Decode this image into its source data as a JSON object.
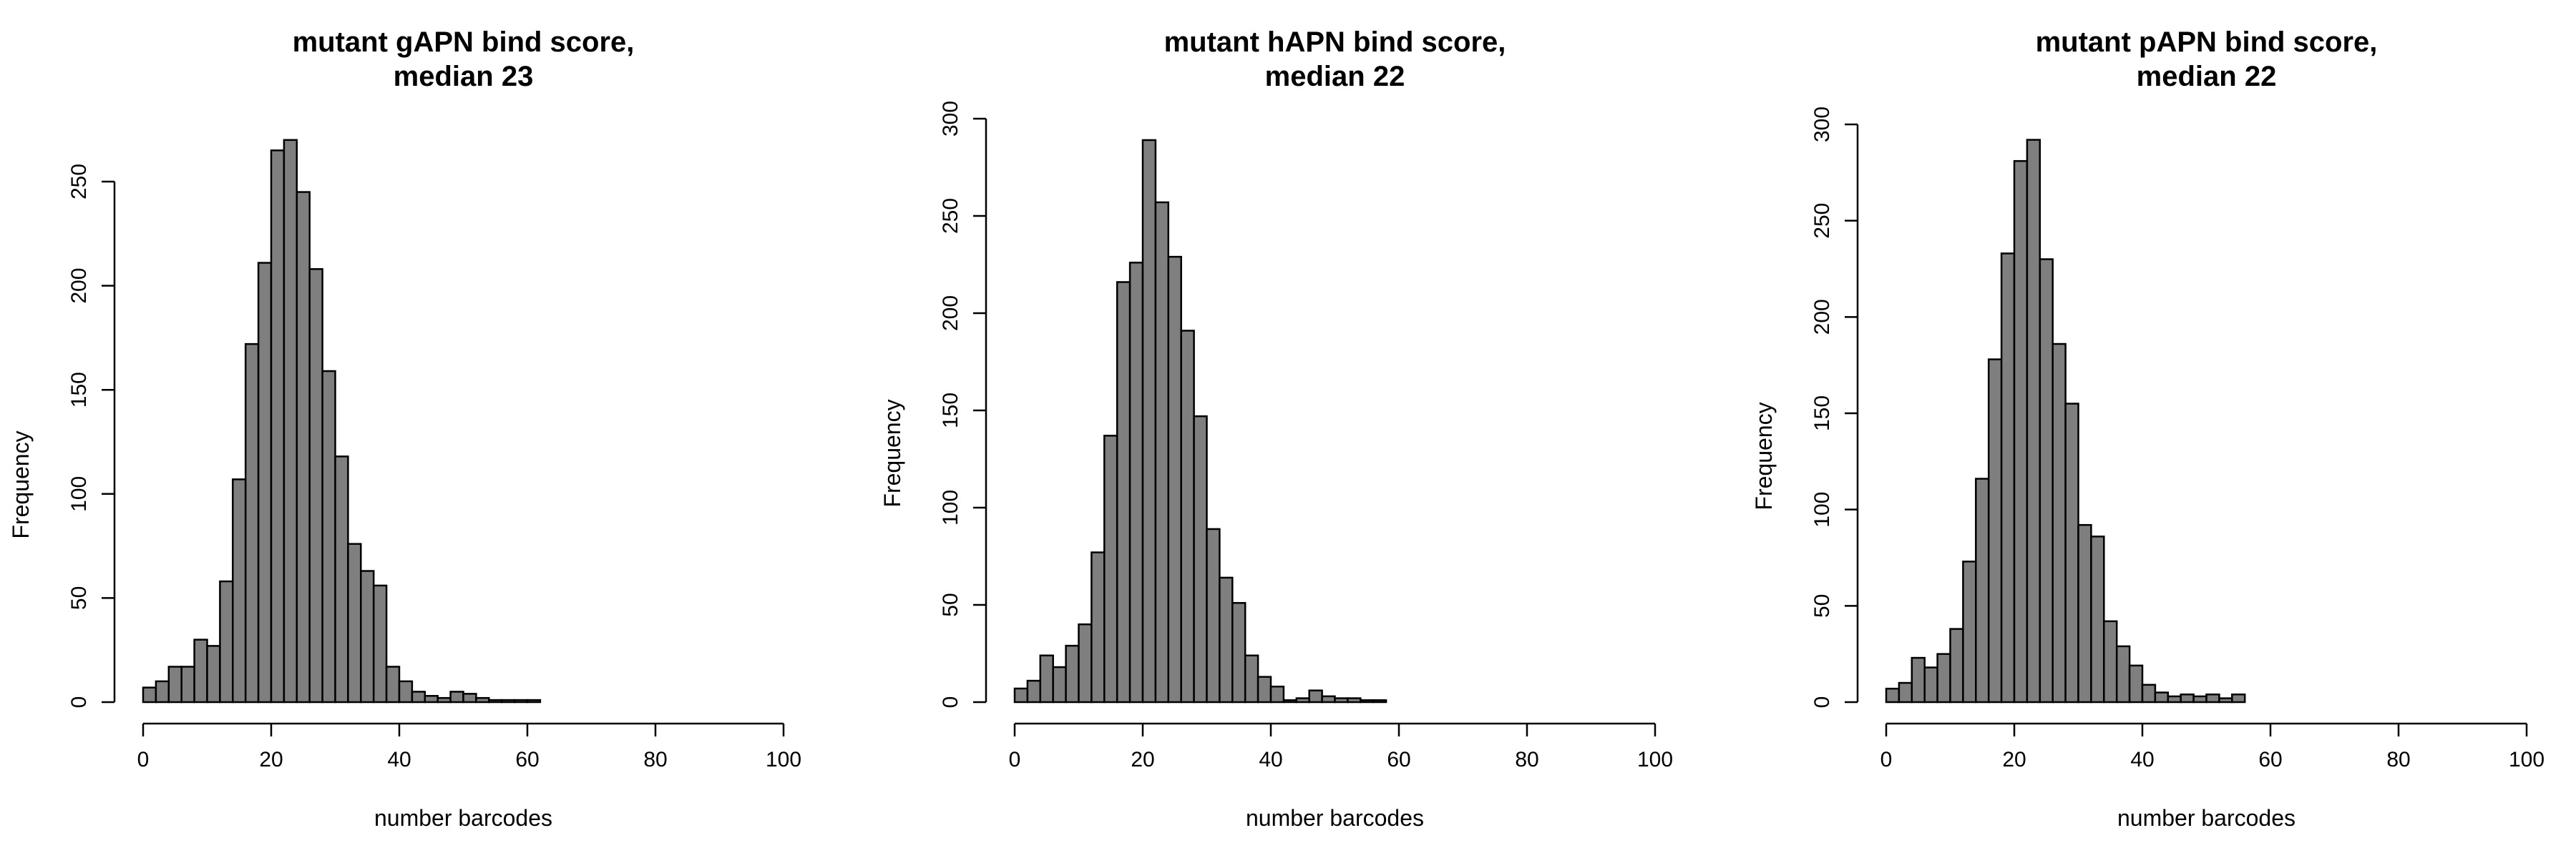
{
  "chart_data": [
    {
      "type": "bar",
      "title_line1": "mutant gAPN bind score,",
      "title_line2": "median 23",
      "xlabel": "number barcodes",
      "ylabel": "Frequency",
      "xlim": [
        0,
        100
      ],
      "ylim": [
        0,
        250
      ],
      "xticks": [
        "0",
        "20",
        "40",
        "60",
        "80",
        "100"
      ],
      "yticks": [
        "0",
        "50",
        "100",
        "150",
        "200",
        "250"
      ],
      "bin_width": 2,
      "bin_start": 0,
      "values": [
        7,
        10,
        17,
        17,
        30,
        27,
        58,
        107,
        172,
        211,
        265,
        270,
        245,
        208,
        159,
        118,
        76,
        63,
        56,
        17,
        10,
        5,
        3,
        2,
        5,
        4,
        2,
        1,
        1,
        1,
        1
      ]
    },
    {
      "type": "bar",
      "title_line1": "mutant hAPN bind score,",
      "title_line2": "median 22",
      "xlabel": "number barcodes",
      "ylabel": "Frequency",
      "xlim": [
        0,
        100
      ],
      "ylim": [
        0,
        300
      ],
      "xticks": [
        "0",
        "20",
        "40",
        "60",
        "80",
        "100"
      ],
      "yticks": [
        "0",
        "50",
        "100",
        "150",
        "200",
        "250",
        "300"
      ],
      "bin_width": 2,
      "bin_start": 0,
      "values": [
        7,
        11,
        24,
        18,
        29,
        40,
        77,
        137,
        216,
        226,
        289,
        257,
        229,
        191,
        147,
        89,
        64,
        51,
        24,
        13,
        8,
        1,
        2,
        6,
        3,
        2,
        2,
        1,
        1
      ]
    },
    {
      "type": "bar",
      "title_line1": "mutant pAPN bind score,",
      "title_line2": "median 22",
      "xlabel": "number barcodes",
      "ylabel": "Frequency",
      "xlim": [
        0,
        100
      ],
      "ylim": [
        0,
        300
      ],
      "xticks": [
        "0",
        "20",
        "40",
        "60",
        "80",
        "100"
      ],
      "yticks": [
        "0",
        "50",
        "100",
        "150",
        "200",
        "250",
        "300"
      ],
      "bin_width": 2,
      "bin_start": 0,
      "values": [
        7,
        10,
        23,
        18,
        25,
        38,
        73,
        116,
        178,
        233,
        281,
        292,
        230,
        186,
        155,
        92,
        86,
        42,
        29,
        19,
        9,
        5,
        3,
        4,
        3,
        4,
        2,
        4
      ]
    }
  ]
}
